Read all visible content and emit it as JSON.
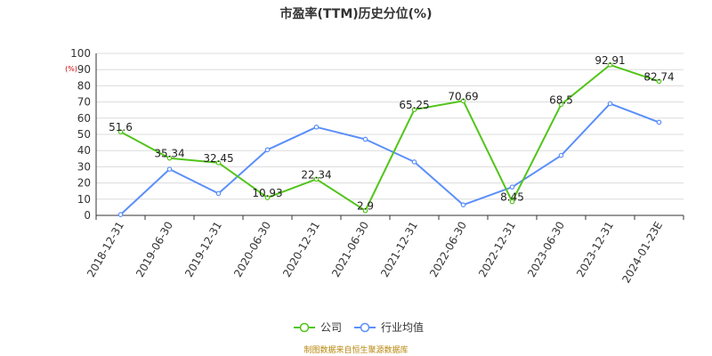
{
  "chart_data": {
    "type": "line",
    "title": "市盈率(TTM)历史分位(%)",
    "unit": "(%)",
    "categories": [
      "2018-12-31",
      "2019-06-30",
      "2019-12-31",
      "2020-06-30",
      "2020-12-31",
      "2021-06-30",
      "2021-12-31",
      "2022-06-30",
      "2022-12-31",
      "2023-06-30",
      "2023-12-31",
      "2024-01-23E"
    ],
    "ylim": [
      0,
      100
    ],
    "yticks": [
      "0",
      "10",
      "20",
      "30",
      "40",
      "50",
      "60",
      "70",
      "80",
      "90",
      "100"
    ],
    "grid": true,
    "legend_position": "bottom",
    "series": [
      {
        "name": "公司",
        "color": "#52c41a",
        "values": [
          51.6,
          35.34,
          32.45,
          10.93,
          22.34,
          2.9,
          65.25,
          70.69,
          8.45,
          68.5,
          92.91,
          82.74
        ],
        "labels": [
          "51.6",
          "35.34",
          "32.45",
          "10.93",
          "22.34",
          "2.9",
          "65.25",
          "70.69",
          "8.45",
          "68.5",
          "92.91",
          "82.74"
        ]
      },
      {
        "name": "行业均值",
        "color": "#5b8ff9",
        "values": [
          0.5,
          28.5,
          13.5,
          40.5,
          54.5,
          47,
          33,
          6.5,
          17.5,
          37,
          69,
          57.5
        ]
      }
    ]
  },
  "source": "制图数据来自恒生聚源数据库"
}
